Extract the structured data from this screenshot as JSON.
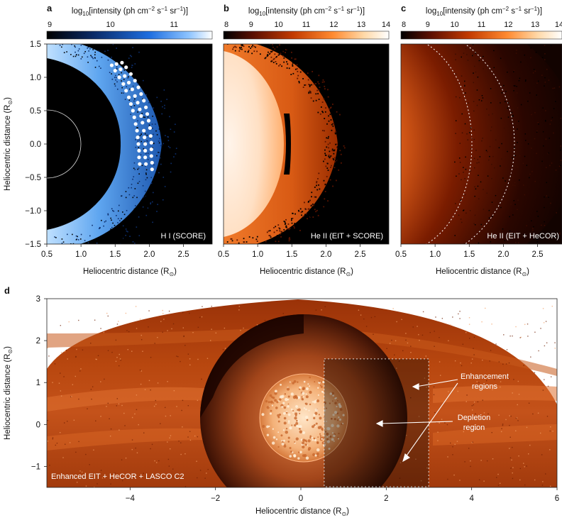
{
  "panels": [
    {
      "letter": "a",
      "colorbar": {
        "title_pre": "log",
        "title_sub": "10",
        "title_mid": "[intensity (ph cm",
        "sup1": "−2",
        "mid2": " s",
        "sup2": "−1",
        "mid3": " sr",
        "sup3": "−1",
        "post": ")]",
        "ticks": [
          "9",
          "10",
          "11"
        ],
        "tick_values": [
          9,
          10,
          11
        ],
        "range": [
          9,
          11.6
        ],
        "colors": [
          "#000000",
          "#0a2a66",
          "#1e6ee0",
          "#8ec4ff",
          "#ffffff"
        ]
      },
      "label": "H I (SCORE)",
      "ylabel": "Heliocentric distance (R",
      "ylabel_sub": "⊙",
      "ylabel_post": ")",
      "xlabel": "Heliocentric distance (R",
      "xlabel_sub": "⊙",
      "xlabel_post": ")",
      "xticks": [
        "0.5",
        "1.0",
        "1.5",
        "2.0",
        "2.5"
      ],
      "xtick_values": [
        0.5,
        1.0,
        1.5,
        2.0,
        2.5
      ],
      "xlim": [
        0.5,
        2.92
      ],
      "yticks": [
        "1.5",
        "1.0",
        "0.5",
        "0.0",
        "−0.5",
        "−1.0",
        "−1.5"
      ],
      "ytick_values": [
        1.5,
        1.0,
        0.5,
        0.0,
        -0.5,
        -1.0,
        -1.5
      ],
      "ylim": [
        -1.5,
        1.5
      ]
    },
    {
      "letter": "b",
      "colorbar": {
        "title_pre": "log",
        "title_sub": "10",
        "title_mid": "[intensity (ph cm",
        "sup1": "−2",
        "mid2": " s",
        "sup2": "−1",
        "mid3": " sr",
        "sup3": "−1",
        "post": ")]",
        "ticks": [
          "8",
          "9",
          "10",
          "11",
          "12",
          "13",
          "14"
        ],
        "tick_values": [
          8,
          9,
          10,
          11,
          12,
          13,
          14
        ],
        "range": [
          8,
          14
        ],
        "colors": [
          "#000000",
          "#5a0f00",
          "#c23a00",
          "#ff8a30",
          "#ffd9a8",
          "#ffffff"
        ]
      },
      "label": "He II (EIT + SCORE)",
      "xlabel": "Heliocentric distance (R",
      "xlabel_sub": "⊙",
      "xlabel_post": ")",
      "xticks": [
        "0.5",
        "1.0",
        "1.5",
        "2.0",
        "2.5"
      ],
      "xtick_values": [
        0.5,
        1.0,
        1.5,
        2.0,
        2.5
      ],
      "xlim": [
        0.5,
        2.92
      ]
    },
    {
      "letter": "c",
      "colorbar": {
        "title_pre": "log",
        "title_sub": "10",
        "title_mid": "[intensity (ph cm",
        "sup1": "−2",
        "mid2": " s",
        "sup2": "−1",
        "mid3": " sr",
        "sup3": "−1",
        "post": ")]",
        "ticks": [
          "8",
          "9",
          "10",
          "11",
          "12",
          "13",
          "14"
        ],
        "tick_values": [
          8,
          9,
          10,
          11,
          12,
          13,
          14
        ],
        "range": [
          8,
          14
        ],
        "colors": [
          "#000000",
          "#5a0f00",
          "#c23a00",
          "#ff8a30",
          "#ffd9a8",
          "#ffffff"
        ]
      },
      "label": "He II (EIT + HeCOR)",
      "xlabel": "Heliocentric distance (R",
      "xlabel_sub": "⊙",
      "xlabel_post": ")",
      "xticks": [
        "0.5",
        "1.0",
        "1.5",
        "2.0",
        "2.5"
      ],
      "xtick_values": [
        0.5,
        1.0,
        1.5,
        2.0,
        2.5
      ],
      "xlim": [
        0.5,
        2.92
      ]
    }
  ],
  "panel_d": {
    "letter": "d",
    "label": "Enhanced EIT + HeCOR + LASCO C2",
    "ylabel": "Heliocentric distance (R",
    "ylabel_sub": "⊙",
    "ylabel_post": ")",
    "xlabel": "Heliocentric distance (R",
    "xlabel_sub": "⊙",
    "xlabel_post": ")",
    "xticks": [
      "−4",
      "−2",
      "0",
      "2",
      "4",
      "6"
    ],
    "xtick_values": [
      -4,
      -2,
      0,
      2,
      4,
      6
    ],
    "xlim": [
      -5.95,
      6.0
    ],
    "yticks": [
      "3",
      "2",
      "1",
      "0",
      "−1"
    ],
    "ytick_values": [
      3,
      2,
      1,
      0,
      -1
    ],
    "ylim": [
      -1.5,
      3.0
    ],
    "annotations": {
      "enhancement_line1": "Enhancement",
      "enhancement_line2": "regions",
      "depletion_line1": "Depletion",
      "depletion_line2": "region"
    }
  },
  "chart_data": [
    {
      "type": "heatmap",
      "panel": "a",
      "title": "H I (SCORE)",
      "xlabel": "Heliocentric distance (R⊙)",
      "ylabel": "Heliocentric distance (R⊙)",
      "xlim": [
        0.5,
        2.92
      ],
      "ylim": [
        -1.5,
        1.5
      ],
      "colorbar_label": "log10[intensity (ph cm−2 s−1 sr−1)]",
      "colorbar_range": [
        9,
        11.6
      ],
      "annotation_points": [
        {
          "x": 1.45,
          "y": 1.18
        },
        {
          "x": 1.52,
          "y": 1.2
        },
        {
          "x": 1.6,
          "y": 1.22
        },
        {
          "x": 1.5,
          "y": 1.1
        },
        {
          "x": 1.58,
          "y": 1.12
        },
        {
          "x": 1.66,
          "y": 1.15
        },
        {
          "x": 1.56,
          "y": 1.0
        },
        {
          "x": 1.64,
          "y": 1.02
        },
        {
          "x": 1.73,
          "y": 1.05
        },
        {
          "x": 1.62,
          "y": 0.9
        },
        {
          "x": 1.7,
          "y": 0.92
        },
        {
          "x": 1.79,
          "y": 0.95
        },
        {
          "x": 1.66,
          "y": 0.8
        },
        {
          "x": 1.75,
          "y": 0.82
        },
        {
          "x": 1.84,
          "y": 0.85
        },
        {
          "x": 1.7,
          "y": 0.7
        },
        {
          "x": 1.79,
          "y": 0.72
        },
        {
          "x": 1.88,
          "y": 0.75
        },
        {
          "x": 1.73,
          "y": 0.6
        },
        {
          "x": 1.83,
          "y": 0.62
        },
        {
          "x": 1.92,
          "y": 0.65
        },
        {
          "x": 1.76,
          "y": 0.5
        },
        {
          "x": 1.86,
          "y": 0.52
        },
        {
          "x": 1.95,
          "y": 0.55
        },
        {
          "x": 1.78,
          "y": 0.4
        },
        {
          "x": 1.88,
          "y": 0.42
        },
        {
          "x": 1.97,
          "y": 0.45
        },
        {
          "x": 1.8,
          "y": 0.3
        },
        {
          "x": 1.9,
          "y": 0.32
        },
        {
          "x": 1.99,
          "y": 0.35
        },
        {
          "x": 1.82,
          "y": 0.2
        },
        {
          "x": 1.92,
          "y": 0.2
        },
        {
          "x": 2.01,
          "y": 0.24
        },
        {
          "x": 1.83,
          "y": 0.1
        },
        {
          "x": 1.93,
          "y": 0.1
        },
        {
          "x": 2.02,
          "y": 0.12
        },
        {
          "x": 1.84,
          "y": 0.0
        },
        {
          "x": 1.94,
          "y": 0.0
        },
        {
          "x": 2.03,
          "y": 0.02
        },
        {
          "x": 1.85,
          "y": -0.1
        },
        {
          "x": 1.94,
          "y": -0.1
        },
        {
          "x": 2.03,
          "y": -0.08
        },
        {
          "x": 1.85,
          "y": -0.2
        },
        {
          "x": 1.94,
          "y": -0.2
        },
        {
          "x": 2.03,
          "y": -0.18
        },
        {
          "x": 1.86,
          "y": -0.3
        },
        {
          "x": 1.95,
          "y": -0.3
        },
        {
          "x": 2.04,
          "y": -0.28
        },
        {
          "x": 2.04,
          "y": -0.38
        }
      ]
    },
    {
      "type": "heatmap",
      "panel": "b",
      "title": "He II (EIT + SCORE)",
      "xlabel": "Heliocentric distance (R⊙)",
      "xlim": [
        0.5,
        2.92
      ],
      "ylim": [
        -1.5,
        1.5
      ],
      "colorbar_label": "log10[intensity (ph cm−2 s−1 sr−1)]",
      "colorbar_range": [
        8,
        14
      ]
    },
    {
      "type": "heatmap",
      "panel": "c",
      "title": "He II (EIT + HeCOR)",
      "xlabel": "Heliocentric distance (R⊙)",
      "xlim": [
        0.5,
        2.92
      ],
      "ylim": [
        -1.5,
        1.5
      ],
      "colorbar_label": "log10[intensity (ph cm−2 s−1 sr−1)]",
      "colorbar_range": [
        8,
        14
      ]
    },
    {
      "type": "heatmap",
      "panel": "d",
      "title": "Enhanced EIT + HeCOR + LASCO C2",
      "xlabel": "Heliocentric distance (R⊙)",
      "ylabel": "Heliocentric distance (R⊙)",
      "xlim": [
        -5.95,
        6.0
      ],
      "ylim": [
        -1.5,
        3.0
      ],
      "annotations": [
        "Enhancement regions",
        "Depletion region"
      ]
    }
  ]
}
